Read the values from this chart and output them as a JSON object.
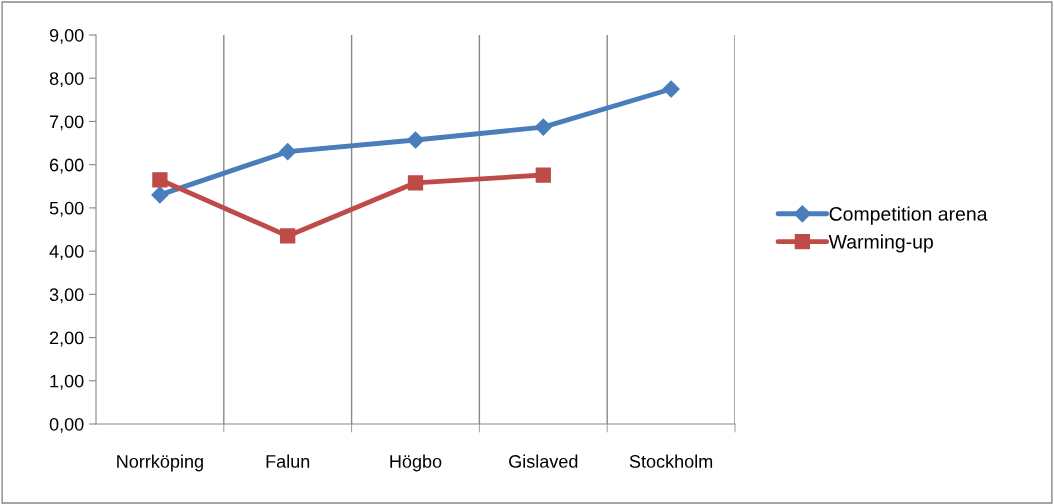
{
  "chart_data": {
    "type": "line",
    "categories": [
      "Norrköping",
      "Falun",
      "Högbo",
      "Gislaved",
      "Stockholm"
    ],
    "series": [
      {
        "name": "Competition arena",
        "color": "#4a7ebb",
        "marker": "diamond",
        "values": [
          5.3,
          6.3,
          6.57,
          6.87,
          7.75
        ]
      },
      {
        "name": "Warming-up",
        "color": "#be4b48",
        "marker": "square",
        "values": [
          5.65,
          4.35,
          5.58,
          5.76,
          null
        ]
      }
    ],
    "ylim": [
      0,
      9
    ],
    "yticks": [
      {
        "value": 0,
        "label": "0,00"
      },
      {
        "value": 1,
        "label": "1,00"
      },
      {
        "value": 2,
        "label": "2,00"
      },
      {
        "value": 3,
        "label": "3,00"
      },
      {
        "value": 4,
        "label": "4,00"
      },
      {
        "value": 5,
        "label": "5,00"
      },
      {
        "value": 6,
        "label": "6,00"
      },
      {
        "value": 7,
        "label": "7,00"
      },
      {
        "value": 8,
        "label": "8,00"
      },
      {
        "value": 9,
        "label": "9,00"
      }
    ],
    "grid": "x",
    "legend": "right",
    "line_style": "solid"
  }
}
